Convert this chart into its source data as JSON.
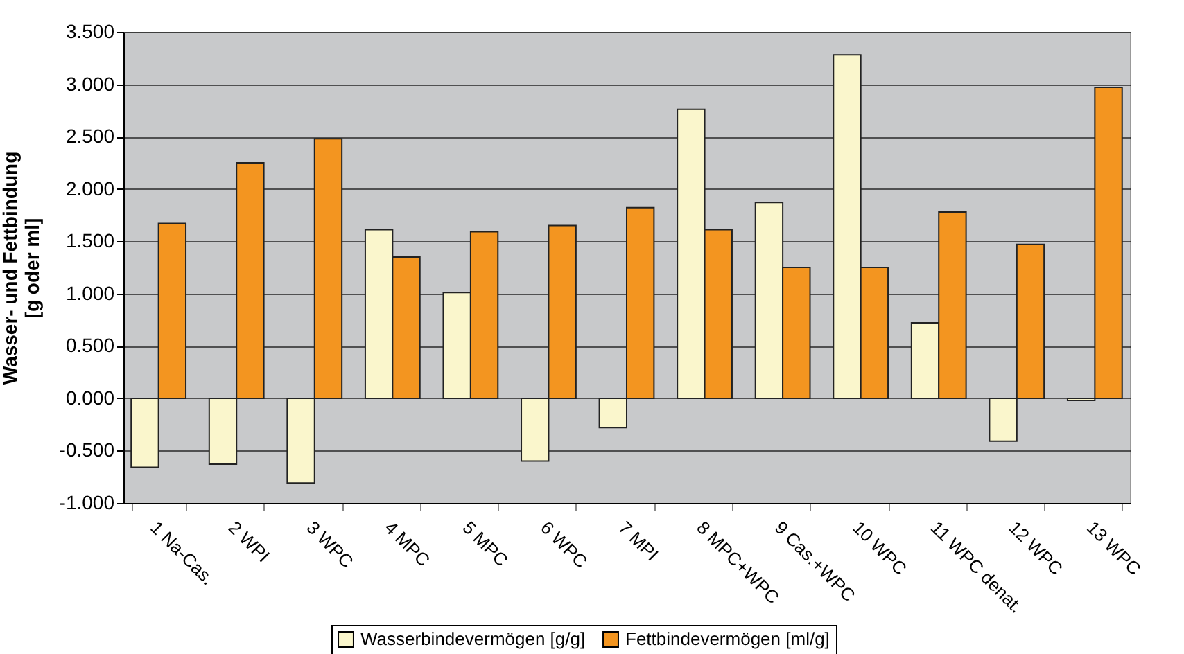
{
  "chart_data": {
    "type": "bar",
    "ylabel": "Wasser- und Fettbindung\n[g oder ml]",
    "categories": [
      "1 Na-Cas.",
      "2 WPI",
      "3 WPC",
      "4 MPC",
      "5 MPC",
      "6 WPC",
      "7 MPI",
      "8 MPC+WPC",
      "9 Cas.+WPC",
      "10 WPC",
      "11 WPC denat.",
      "12 WPC",
      "13 WPC"
    ],
    "series": [
      {
        "name": "Wasserbindevermögen [g/g]",
        "color": "#faf6cc",
        "values": [
          -0.66,
          -0.63,
          -0.81,
          1.61,
          1.01,
          -0.6,
          -0.28,
          2.76,
          1.87,
          3.28,
          0.72,
          -0.41,
          -0.02
        ]
      },
      {
        "name": "Fettbindevermögen [ml/g]",
        "color": "#f39520",
        "values": [
          1.67,
          2.25,
          2.48,
          1.35,
          1.59,
          1.65,
          1.82,
          1.61,
          1.25,
          1.25,
          1.78,
          1.47,
          2.97
        ]
      }
    ],
    "ylim": [
      -1.0,
      3.5
    ],
    "yticks": [
      {
        "value": -1.0,
        "label": "-1.000"
      },
      {
        "value": -0.5,
        "label": "-0.500"
      },
      {
        "value": 0,
        "label": "0.000"
      },
      {
        "value": 0.5,
        "label": "0.500"
      },
      {
        "value": 1.0,
        "label": "1.000"
      },
      {
        "value": 1.5,
        "label": "1.500"
      },
      {
        "value": 2.0,
        "label": "2.000"
      },
      {
        "value": 2.5,
        "label": "2.500"
      },
      {
        "value": 3.0,
        "label": "3.000"
      },
      {
        "value": 3.5,
        "label": "3.500"
      }
    ],
    "grid": "y",
    "legend": "bottom"
  }
}
